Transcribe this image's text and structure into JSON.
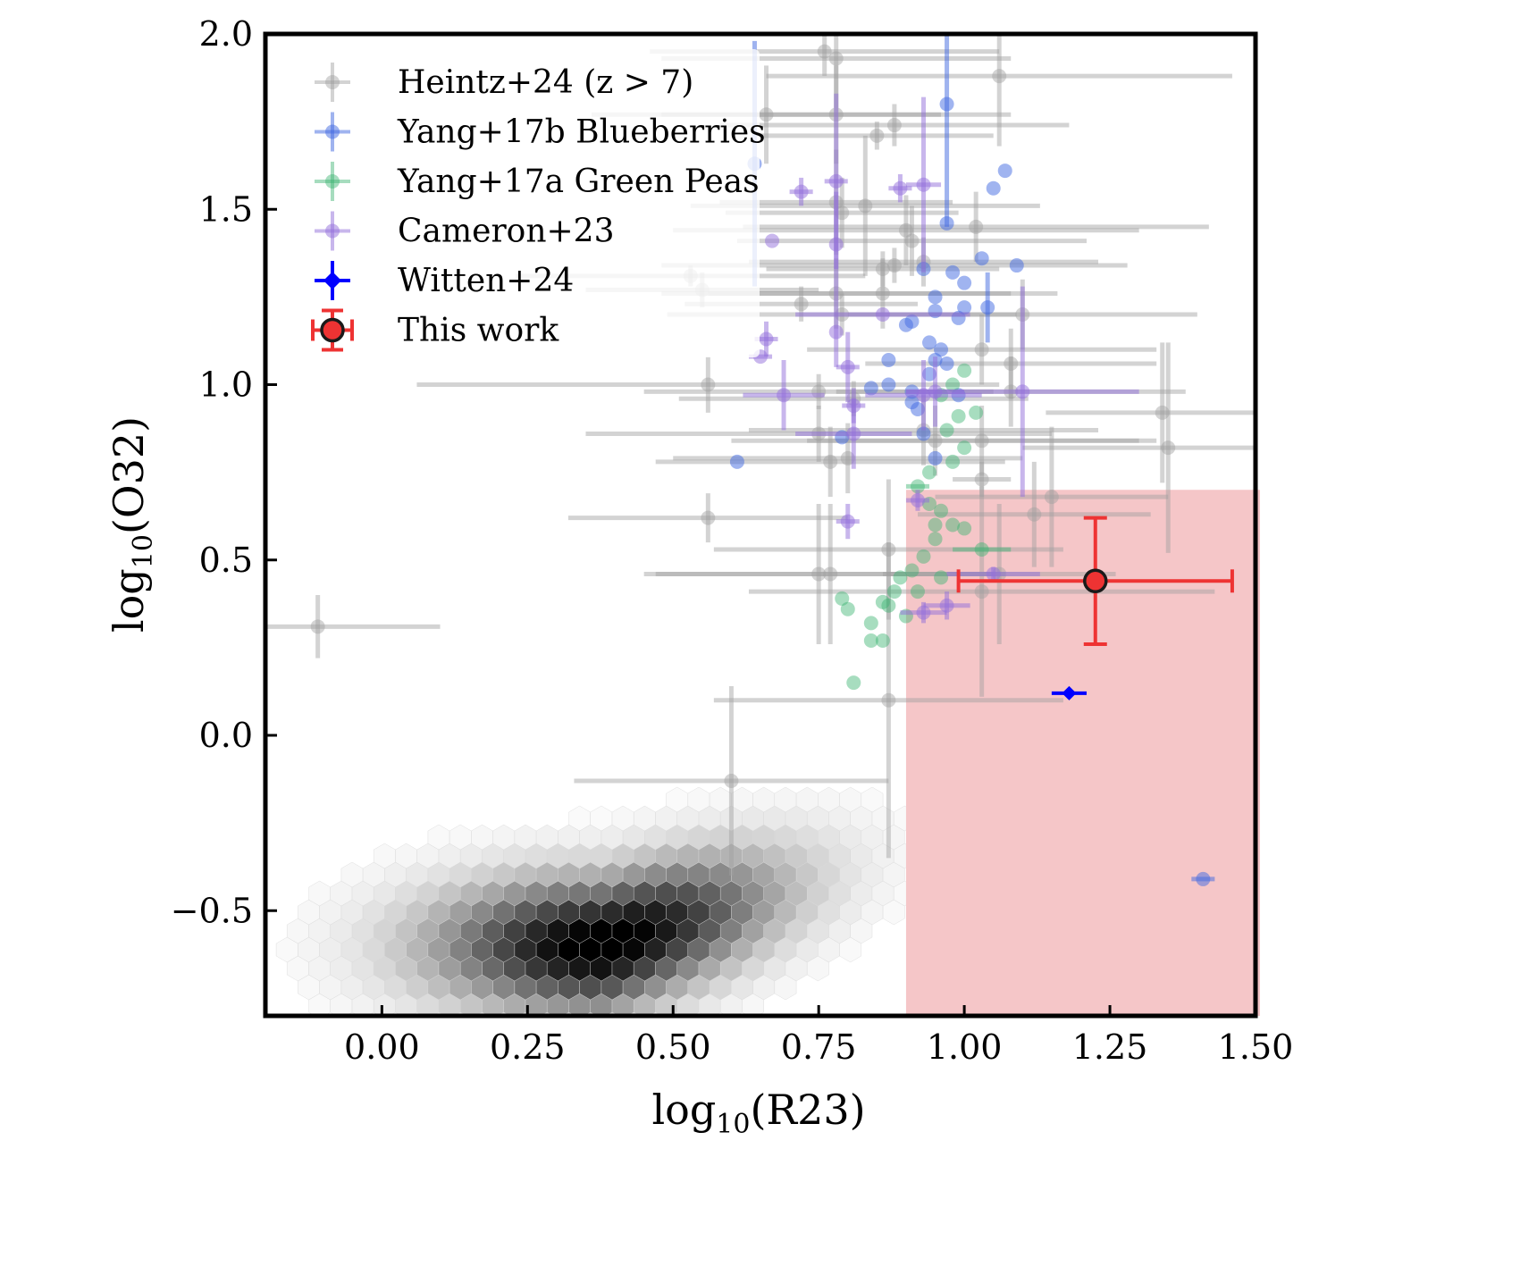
{
  "chart_data": {
    "type": "scatter",
    "title": "",
    "xlabel": "log10(R23)",
    "ylabel": "log10(O32)",
    "xlabel_parts": {
      "pre": "log",
      "sub": "10",
      "post": "(R23)"
    },
    "ylabel_parts": {
      "pre": "log",
      "sub": "10",
      "post": "(O32)"
    },
    "xlim": [
      -0.2,
      1.5
    ],
    "ylim": [
      -0.8,
      2.0
    ],
    "xticks": [
      0.0,
      0.25,
      0.5,
      0.75,
      1.0,
      1.25,
      1.5
    ],
    "xtick_labels": [
      "0.00",
      "0.25",
      "0.50",
      "0.75",
      "1.00",
      "1.25",
      "1.50"
    ],
    "yticks": [
      -0.5,
      0.0,
      0.5,
      1.0,
      1.5,
      2.0
    ],
    "ytick_labels": [
      "−0.5",
      "0.0",
      "0.5",
      "1.0",
      "1.5",
      "2.0"
    ],
    "grid": false,
    "legend_position": "top-left",
    "highlight_region": {
      "x_min": 0.9,
      "x_max": 1.5,
      "y_min": -0.8,
      "y_max": 0.7,
      "color": "#f5c6c8"
    },
    "background_density": {
      "type": "hexbin",
      "colormap": "greys",
      "peak": {
        "x": 0.38,
        "y": -0.6
      },
      "note": "local galaxy density, extends from x≈-0.1 to 0.9, y≈-0.8 to 0.2"
    },
    "series": [
      {
        "name": "Heintz+24 (z > 7)",
        "color": "#a0a0a0",
        "alpha": 0.45,
        "marker": "circle",
        "points": [
          {
            "x": -0.11,
            "y": 0.31,
            "xerr": 0.21,
            "yerr": 0.09
          },
          {
            "x": 0.6,
            "y": -0.13,
            "xerr": 0.27,
            "yerr": 0.27
          },
          {
            "x": 0.56,
            "y": 0.62,
            "xerr": 0.24,
            "yerr": 0.07
          },
          {
            "x": 0.56,
            "y": 1.0,
            "xerr": 0.5,
            "yerr": 0.08
          },
          {
            "x": 0.53,
            "y": 1.31,
            "xerr": 0.3,
            "yerr": 0.03
          },
          {
            "x": 0.55,
            "y": 1.27,
            "xerr": 0.2,
            "yerr": 0.05
          },
          {
            "x": 0.76,
            "y": 1.95,
            "xerr": 0.3,
            "yerr": 0.07
          },
          {
            "x": 0.78,
            "y": 1.93,
            "xerr": 0.3,
            "yerr": 0.14
          },
          {
            "x": 0.66,
            "y": 1.77,
            "xerr": 0.3,
            "yerr": 0.14
          },
          {
            "x": 0.78,
            "y": 1.77,
            "xerr": 0.3,
            "yerr": 0.14
          },
          {
            "x": 0.85,
            "y": 1.71,
            "xerr": 0.2,
            "yerr": 0.04
          },
          {
            "x": 0.88,
            "y": 1.74,
            "xerr": 0.3,
            "yerr": 0.06
          },
          {
            "x": 1.06,
            "y": 1.88,
            "xerr": 0.4,
            "yerr": 0.2
          },
          {
            "x": 0.78,
            "y": 1.52,
            "xerr": 0.2,
            "yerr": 0.15
          },
          {
            "x": 0.79,
            "y": 1.49,
            "xerr": 0.2,
            "yerr": 0.1
          },
          {
            "x": 0.83,
            "y": 1.51,
            "xerr": 0.3,
            "yerr": 0.2
          },
          {
            "x": 0.9,
            "y": 1.44,
            "xerr": 0.4,
            "yerr": 0.1
          },
          {
            "x": 0.91,
            "y": 1.41,
            "xerr": 0.3,
            "yerr": 0.1
          },
          {
            "x": 0.86,
            "y": 1.33,
            "xerr": 0.2,
            "yerr": 0.05
          },
          {
            "x": 0.88,
            "y": 1.34,
            "xerr": 0.4,
            "yerr": 0.05
          },
          {
            "x": 0.93,
            "y": 1.35,
            "xerr": 0.3,
            "yerr": 0.07
          },
          {
            "x": 1.02,
            "y": 1.45,
            "xerr": 0.4,
            "yerr": 0.1
          },
          {
            "x": 0.78,
            "y": 1.26,
            "xerr": 0.3,
            "yerr": 0.1
          },
          {
            "x": 0.72,
            "y": 1.23,
            "xerr": 0.2,
            "yerr": 0.05
          },
          {
            "x": 0.86,
            "y": 1.26,
            "xerr": 0.3,
            "yerr": 0.1
          },
          {
            "x": 0.79,
            "y": 1.2,
            "xerr": 0.3,
            "yerr": 0.06
          },
          {
            "x": 1.03,
            "y": 1.1,
            "xerr": 0.3,
            "yerr": 0.1
          },
          {
            "x": 1.1,
            "y": 1.2,
            "xerr": 0.3,
            "yerr": 0.1
          },
          {
            "x": 1.08,
            "y": 1.06,
            "xerr": 0.25,
            "yerr": 0.1
          },
          {
            "x": 0.75,
            "y": 0.98,
            "xerr": 0.3,
            "yerr": 0.05
          },
          {
            "x": 0.81,
            "y": 0.96,
            "xerr": 0.3,
            "yerr": 0.05
          },
          {
            "x": 0.75,
            "y": 0.86,
            "xerr": 0.4,
            "yerr": 0.08
          },
          {
            "x": 0.8,
            "y": 0.79,
            "xerr": 0.3,
            "yerr": 0.1
          },
          {
            "x": 0.77,
            "y": 0.78,
            "xerr": 0.3,
            "yerr": 0.1
          },
          {
            "x": 0.93,
            "y": 0.87,
            "xerr": 0.3,
            "yerr": 0.1
          },
          {
            "x": 0.95,
            "y": 0.84,
            "xerr": 0.35,
            "yerr": 0.1
          },
          {
            "x": 1.03,
            "y": 0.84,
            "xerr": 0.3,
            "yerr": 0.1
          },
          {
            "x": 1.03,
            "y": 0.73,
            "xerr": 0.05,
            "yerr": 0.05
          },
          {
            "x": 1.08,
            "y": 0.98,
            "xerr": 0.3,
            "yerr": 0.1
          },
          {
            "x": 1.34,
            "y": 0.92,
            "xerr": 0.2,
            "yerr": 0.2
          },
          {
            "x": 1.35,
            "y": 0.82,
            "xerr": 0.25,
            "yerr": 0.3
          },
          {
            "x": 1.12,
            "y": 0.63,
            "xerr": 0.2,
            "yerr": 0.15
          },
          {
            "x": 1.15,
            "y": 0.68,
            "xerr": 0.2,
            "yerr": 0.2
          },
          {
            "x": 0.87,
            "y": 0.53,
            "xerr": 0.3,
            "yerr": 0.2
          },
          {
            "x": 0.75,
            "y": 0.46,
            "xerr": 0.3,
            "yerr": 0.2
          },
          {
            "x": 0.77,
            "y": 0.46,
            "xerr": 0.3,
            "yerr": 0.2
          },
          {
            "x": 0.87,
            "y": 0.1,
            "xerr": 0.3,
            "yerr": 0.45
          },
          {
            "x": 1.03,
            "y": 0.41,
            "xerr": 0.4,
            "yerr": 0.3
          },
          {
            "x": 1.06,
            "y": 0.46,
            "xerr": 0.2,
            "yerr": 0.2
          }
        ]
      },
      {
        "name": "Yang+17b Blueberries",
        "color": "#4169e1",
        "alpha": 0.5,
        "marker": "circle",
        "points": [
          {
            "x": 0.97,
            "y": 1.8,
            "xerr": 0.0,
            "yerr": 0.35
          },
          {
            "x": 0.64,
            "y": 1.63,
            "xerr": 0.0,
            "yerr": 0.35
          },
          {
            "x": 1.07,
            "y": 1.61,
            "xerr": 0.0,
            "yerr": 0.0
          },
          {
            "x": 1.05,
            "y": 1.56,
            "xerr": 0.0,
            "yerr": 0.0
          },
          {
            "x": 0.97,
            "y": 1.46,
            "xerr": 0.0,
            "yerr": 0.0
          },
          {
            "x": 1.03,
            "y": 1.36,
            "xerr": 0.0,
            "yerr": 0.0
          },
          {
            "x": 1.09,
            "y": 1.34,
            "xerr": 0.0,
            "yerr": 0.0
          },
          {
            "x": 0.93,
            "y": 1.33,
            "xerr": 0.0,
            "yerr": 0.0
          },
          {
            "x": 0.98,
            "y": 1.32,
            "xerr": 0.0,
            "yerr": 0.0
          },
          {
            "x": 1.0,
            "y": 1.29,
            "xerr": 0.0,
            "yerr": 0.0
          },
          {
            "x": 0.95,
            "y": 1.25,
            "xerr": 0.0,
            "yerr": 0.0
          },
          {
            "x": 0.95,
            "y": 1.21,
            "xerr": 0.0,
            "yerr": 0.0
          },
          {
            "x": 1.0,
            "y": 1.22,
            "xerr": 0.0,
            "yerr": 0.0
          },
          {
            "x": 0.99,
            "y": 1.19,
            "xerr": 0.0,
            "yerr": 0.0
          },
          {
            "x": 1.04,
            "y": 1.22,
            "xerr": 0.0,
            "yerr": 0.1
          },
          {
            "x": 0.91,
            "y": 1.18,
            "xerr": 0.0,
            "yerr": 0.0
          },
          {
            "x": 0.9,
            "y": 1.17,
            "xerr": 0.0,
            "yerr": 0.0
          },
          {
            "x": 0.94,
            "y": 1.12,
            "xerr": 0.0,
            "yerr": 0.0
          },
          {
            "x": 0.96,
            "y": 1.1,
            "xerr": 0.0,
            "yerr": 0.0
          },
          {
            "x": 0.97,
            "y": 1.06,
            "xerr": 0.0,
            "yerr": 0.0
          },
          {
            "x": 0.95,
            "y": 1.07,
            "xerr": 0.0,
            "yerr": 0.0
          },
          {
            "x": 0.87,
            "y": 1.07,
            "xerr": 0.0,
            "yerr": 0.0
          },
          {
            "x": 0.87,
            "y": 1.0,
            "xerr": 0.0,
            "yerr": 0.0
          },
          {
            "x": 0.84,
            "y": 0.99,
            "xerr": 0.0,
            "yerr": 0.0
          },
          {
            "x": 0.91,
            "y": 0.98,
            "xerr": 0.0,
            "yerr": 0.0
          },
          {
            "x": 0.92,
            "y": 0.93,
            "xerr": 0.0,
            "yerr": 0.0
          },
          {
            "x": 0.94,
            "y": 1.03,
            "xerr": 0.0,
            "yerr": 0.0
          },
          {
            "x": 0.99,
            "y": 0.97,
            "xerr": 0.0,
            "yerr": 0.0
          },
          {
            "x": 0.91,
            "y": 0.95,
            "xerr": 0.0,
            "yerr": 0.0
          },
          {
            "x": 0.79,
            "y": 0.85,
            "xerr": 0.0,
            "yerr": 0.0
          },
          {
            "x": 0.93,
            "y": 0.86,
            "xerr": 0.0,
            "yerr": 0.0
          },
          {
            "x": 0.95,
            "y": 0.79,
            "xerr": 0.0,
            "yerr": 0.0
          },
          {
            "x": 0.61,
            "y": 0.78,
            "xerr": 0.0,
            "yerr": 0.0
          },
          {
            "x": 1.41,
            "y": -0.41,
            "xerr": 0.02,
            "yerr": 0.0
          }
        ]
      },
      {
        "name": "Yang+17a Green Peas",
        "color": "#3cb371",
        "alpha": 0.45,
        "marker": "circle",
        "points": [
          {
            "x": 1.0,
            "y": 1.04,
            "xerr": 0.0,
            "yerr": 0.0
          },
          {
            "x": 0.98,
            "y": 1.0,
            "xerr": 0.0,
            "yerr": 0.0
          },
          {
            "x": 0.96,
            "y": 0.97,
            "xerr": 0.0,
            "yerr": 0.0
          },
          {
            "x": 1.02,
            "y": 0.92,
            "xerr": 0.0,
            "yerr": 0.0
          },
          {
            "x": 0.99,
            "y": 0.91,
            "xerr": 0.0,
            "yerr": 0.0
          },
          {
            "x": 0.97,
            "y": 0.87,
            "xerr": 0.0,
            "yerr": 0.0
          },
          {
            "x": 1.0,
            "y": 0.82,
            "xerr": 0.0,
            "yerr": 0.0
          },
          {
            "x": 0.98,
            "y": 0.78,
            "xerr": 0.0,
            "yerr": 0.0
          },
          {
            "x": 0.94,
            "y": 0.75,
            "xerr": 0.0,
            "yerr": 0.0
          },
          {
            "x": 0.92,
            "y": 0.71,
            "xerr": 0.02,
            "yerr": 0.0
          },
          {
            "x": 0.94,
            "y": 0.66,
            "xerr": 0.0,
            "yerr": 0.0
          },
          {
            "x": 0.96,
            "y": 0.64,
            "xerr": 0.0,
            "yerr": 0.0
          },
          {
            "x": 0.95,
            "y": 0.6,
            "xerr": 0.0,
            "yerr": 0.0
          },
          {
            "x": 0.98,
            "y": 0.6,
            "xerr": 0.0,
            "yerr": 0.0
          },
          {
            "x": 1.0,
            "y": 0.59,
            "xerr": 0.0,
            "yerr": 0.0
          },
          {
            "x": 0.95,
            "y": 0.56,
            "xerr": 0.0,
            "yerr": 0.0
          },
          {
            "x": 1.03,
            "y": 0.53,
            "xerr": 0.05,
            "yerr": 0.0
          },
          {
            "x": 0.93,
            "y": 0.51,
            "xerr": 0.0,
            "yerr": 0.0
          },
          {
            "x": 0.91,
            "y": 0.47,
            "xerr": 0.0,
            "yerr": 0.0
          },
          {
            "x": 0.96,
            "y": 0.45,
            "xerr": 0.0,
            "yerr": 0.0
          },
          {
            "x": 0.92,
            "y": 0.41,
            "xerr": 0.0,
            "yerr": 0.0
          },
          {
            "x": 0.89,
            "y": 0.45,
            "xerr": 0.0,
            "yerr": 0.0
          },
          {
            "x": 0.88,
            "y": 0.41,
            "xerr": 0.0,
            "yerr": 0.0
          },
          {
            "x": 0.86,
            "y": 0.38,
            "xerr": 0.0,
            "yerr": 0.0
          },
          {
            "x": 0.87,
            "y": 0.37,
            "xerr": 0.0,
            "yerr": 0.0
          },
          {
            "x": 0.79,
            "y": 0.39,
            "xerr": 0.0,
            "yerr": 0.0
          },
          {
            "x": 0.8,
            "y": 0.36,
            "xerr": 0.0,
            "yerr": 0.0
          },
          {
            "x": 0.9,
            "y": 0.34,
            "xerr": 0.0,
            "yerr": 0.0
          },
          {
            "x": 0.84,
            "y": 0.32,
            "xerr": 0.0,
            "yerr": 0.0
          },
          {
            "x": 0.86,
            "y": 0.27,
            "xerr": 0.0,
            "yerr": 0.0
          },
          {
            "x": 0.84,
            "y": 0.27,
            "xerr": 0.0,
            "yerr": 0.0
          },
          {
            "x": 0.81,
            "y": 0.15,
            "xerr": 0.0,
            "yerr": 0.0
          }
        ]
      },
      {
        "name": "Cameron+23",
        "color": "#9370db",
        "alpha": 0.5,
        "marker": "circle",
        "points": [
          {
            "x": 0.72,
            "y": 1.55,
            "xerr": 0.02,
            "yerr": 0.04
          },
          {
            "x": 0.78,
            "y": 1.58,
            "xerr": 0.02,
            "yerr": 0.25
          },
          {
            "x": 0.89,
            "y": 1.56,
            "xerr": 0.02,
            "yerr": 0.04
          },
          {
            "x": 0.93,
            "y": 1.57,
            "xerr": 0.03,
            "yerr": 0.25
          },
          {
            "x": 0.67,
            "y": 1.41,
            "xerr": 0.0,
            "yerr": 0.0
          },
          {
            "x": 0.78,
            "y": 1.4,
            "xerr": 0.0,
            "yerr": 0.15
          },
          {
            "x": 0.86,
            "y": 1.2,
            "xerr": 0.15,
            "yerr": 0.0
          },
          {
            "x": 0.78,
            "y": 1.15,
            "xerr": 0.0,
            "yerr": 0.1
          },
          {
            "x": 0.66,
            "y": 1.13,
            "xerr": 0.02,
            "yerr": 0.05
          },
          {
            "x": 0.65,
            "y": 1.08,
            "xerr": 0.02,
            "yerr": 0.0
          },
          {
            "x": 0.8,
            "y": 1.05,
            "xerr": 0.02,
            "yerr": 0.1
          },
          {
            "x": 0.69,
            "y": 0.97,
            "xerr": 0.07,
            "yerr": 0.1
          },
          {
            "x": 0.81,
            "y": 0.94,
            "xerr": 0.02,
            "yerr": 0.05
          },
          {
            "x": 0.81,
            "y": 0.86,
            "xerr": 0.1,
            "yerr": 0.1
          },
          {
            "x": 0.95,
            "y": 0.98,
            "xerr": 0.05,
            "yerr": 0.1
          },
          {
            "x": 0.93,
            "y": 0.97,
            "xerr": 0.1,
            "yerr": 0.1
          },
          {
            "x": 1.1,
            "y": 0.98,
            "xerr": 0.2,
            "yerr": 0.3
          },
          {
            "x": 0.8,
            "y": 0.61,
            "xerr": 0.02,
            "yerr": 0.05
          },
          {
            "x": 0.92,
            "y": 0.67,
            "xerr": 0.02,
            "yerr": 0.03
          },
          {
            "x": 1.05,
            "y": 0.46,
            "xerr": 0.08,
            "yerr": 0.02
          },
          {
            "x": 0.97,
            "y": 0.37,
            "xerr": 0.04,
            "yerr": 0.04
          },
          {
            "x": 0.93,
            "y": 0.35,
            "xerr": 0.04,
            "yerr": 0.03
          }
        ]
      },
      {
        "name": "Witten+24",
        "color": "#0000ff",
        "alpha": 1.0,
        "marker": "diamond",
        "points": [
          {
            "x": 1.18,
            "y": 0.12,
            "xerr": 0.03,
            "yerr": 0.015
          }
        ]
      },
      {
        "name": "This work",
        "color": "#ee3333",
        "alpha": 1.0,
        "marker": "circle-outlined",
        "points": [
          {
            "x": 1.225,
            "y": 0.44,
            "xerr": 0.235,
            "yerr": 0.18
          }
        ]
      }
    ]
  }
}
